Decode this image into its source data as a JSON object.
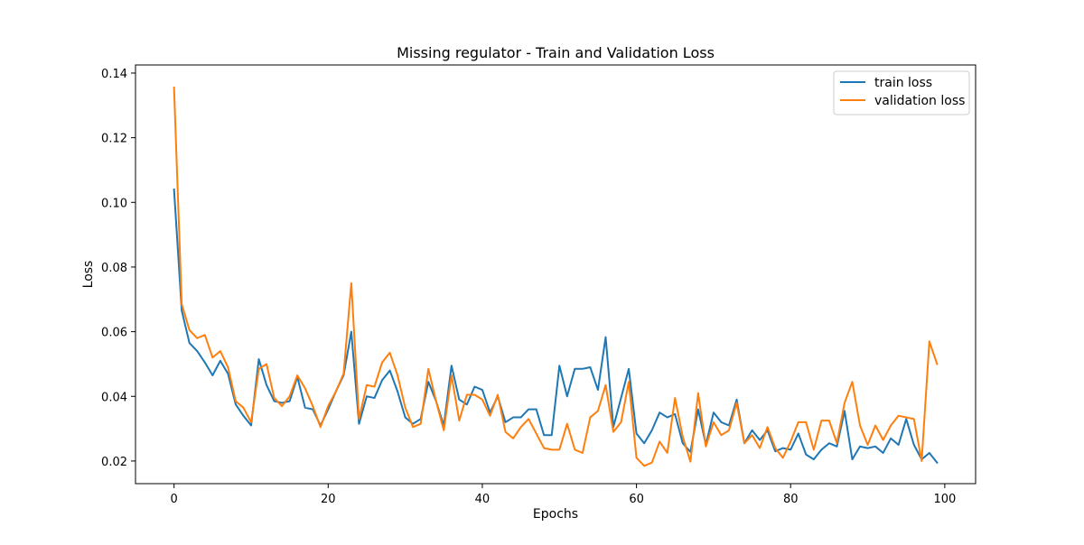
{
  "chart_data": {
    "type": "line",
    "title": "Missing regulator - Train and Validation Loss",
    "xlabel": "Epochs",
    "ylabel": "Loss",
    "xlim": [
      -5,
      104
    ],
    "ylim": [
      0.013,
      0.1425
    ],
    "xticks": [
      0,
      20,
      40,
      60,
      80,
      100
    ],
    "yticks": [
      0.02,
      0.04,
      0.06,
      0.08,
      0.1,
      0.12,
      0.14
    ],
    "xtick_labels": [
      "0",
      "20",
      "40",
      "60",
      "80",
      "100"
    ],
    "ytick_labels": [
      "0.02",
      "0.04",
      "0.06",
      "0.08",
      "0.10",
      "0.12",
      "0.14"
    ],
    "legend_position": "upper right",
    "grid": false,
    "series": [
      {
        "name": "train loss",
        "color": "#1f77b4",
        "x": [
          0,
          1,
          2,
          3,
          4,
          5,
          6,
          7,
          8,
          9,
          10,
          11,
          12,
          13,
          14,
          15,
          16,
          17,
          18,
          19,
          20,
          21,
          22,
          23,
          24,
          25,
          26,
          27,
          28,
          29,
          30,
          31,
          32,
          33,
          34,
          35,
          36,
          37,
          38,
          39,
          40,
          41,
          42,
          43,
          44,
          45,
          46,
          47,
          48,
          49,
          50,
          51,
          52,
          53,
          54,
          55,
          56,
          57,
          58,
          59,
          60,
          61,
          62,
          63,
          64,
          65,
          66,
          67,
          68,
          69,
          70,
          71,
          72,
          73,
          74,
          75,
          76,
          77,
          78,
          79,
          80,
          81,
          82,
          83,
          84,
          85,
          86,
          87,
          88,
          89,
          90,
          91,
          92,
          93,
          94,
          95,
          96,
          97,
          98,
          99
        ],
        "values": [
          0.104,
          0.0665,
          0.0565,
          0.054,
          0.0505,
          0.0465,
          0.051,
          0.047,
          0.0375,
          0.034,
          0.031,
          0.0515,
          0.0435,
          0.0385,
          0.038,
          0.0385,
          0.046,
          0.0365,
          0.036,
          0.031,
          0.036,
          0.0415,
          0.0465,
          0.06,
          0.0315,
          0.04,
          0.0395,
          0.045,
          0.048,
          0.0415,
          0.0335,
          0.0315,
          0.033,
          0.0445,
          0.0385,
          0.031,
          0.0495,
          0.039,
          0.0375,
          0.043,
          0.042,
          0.035,
          0.04,
          0.032,
          0.0335,
          0.0335,
          0.036,
          0.036,
          0.028,
          0.028,
          0.0495,
          0.04,
          0.0485,
          0.0485,
          0.049,
          0.042,
          0.0583,
          0.0305,
          0.0395,
          0.0485,
          0.0285,
          0.0255,
          0.0295,
          0.035,
          0.0335,
          0.0345,
          0.0255,
          0.0228,
          0.036,
          0.025,
          0.035,
          0.032,
          0.031,
          0.039,
          0.0255,
          0.0295,
          0.0265,
          0.0295,
          0.023,
          0.024,
          0.0235,
          0.0285,
          0.022,
          0.0205,
          0.0235,
          0.0255,
          0.0245,
          0.0355,
          0.0205,
          0.0245,
          0.024,
          0.0245,
          0.0225,
          0.027,
          0.025,
          0.033,
          0.025,
          0.0205,
          0.0225,
          0.0195
        ]
      },
      {
        "name": "validation loss",
        "color": "#ff7f0e",
        "x": [
          0,
          1,
          2,
          3,
          4,
          5,
          6,
          7,
          8,
          9,
          10,
          11,
          12,
          13,
          14,
          15,
          16,
          17,
          18,
          19,
          20,
          21,
          22,
          23,
          24,
          25,
          26,
          27,
          28,
          29,
          30,
          31,
          32,
          33,
          34,
          35,
          36,
          37,
          38,
          39,
          40,
          41,
          42,
          43,
          44,
          45,
          46,
          47,
          48,
          49,
          50,
          51,
          52,
          53,
          54,
          55,
          56,
          57,
          58,
          59,
          60,
          61,
          62,
          63,
          64,
          65,
          66,
          67,
          68,
          69,
          70,
          71,
          72,
          73,
          74,
          75,
          76,
          77,
          78,
          79,
          80,
          81,
          82,
          83,
          84,
          85,
          86,
          87,
          88,
          89,
          90,
          91,
          92,
          93,
          94,
          95,
          96,
          97,
          98,
          99
        ],
        "values": [
          0.1355,
          0.0685,
          0.0605,
          0.058,
          0.059,
          0.052,
          0.054,
          0.049,
          0.0385,
          0.0365,
          0.032,
          0.0485,
          0.05,
          0.0395,
          0.037,
          0.04,
          0.0465,
          0.0425,
          0.037,
          0.0305,
          0.037,
          0.0415,
          0.047,
          0.075,
          0.033,
          0.0435,
          0.043,
          0.0505,
          0.0535,
          0.0465,
          0.0365,
          0.0305,
          0.0315,
          0.0485,
          0.0385,
          0.0295,
          0.0465,
          0.0325,
          0.0405,
          0.0405,
          0.039,
          0.034,
          0.0405,
          0.029,
          0.027,
          0.0305,
          0.033,
          0.0285,
          0.024,
          0.0235,
          0.0235,
          0.0315,
          0.0235,
          0.0225,
          0.0335,
          0.0355,
          0.0435,
          0.029,
          0.032,
          0.0445,
          0.021,
          0.0185,
          0.0195,
          0.026,
          0.0225,
          0.0395,
          0.0275,
          0.0198,
          0.041,
          0.0245,
          0.032,
          0.028,
          0.0295,
          0.038,
          0.0255,
          0.028,
          0.024,
          0.0305,
          0.024,
          0.021,
          0.026,
          0.032,
          0.032,
          0.0235,
          0.0325,
          0.0325,
          0.0255,
          0.038,
          0.0445,
          0.031,
          0.025,
          0.031,
          0.0265,
          0.031,
          0.034,
          0.0335,
          0.033,
          0.02,
          0.057,
          0.05
        ]
      }
    ]
  }
}
